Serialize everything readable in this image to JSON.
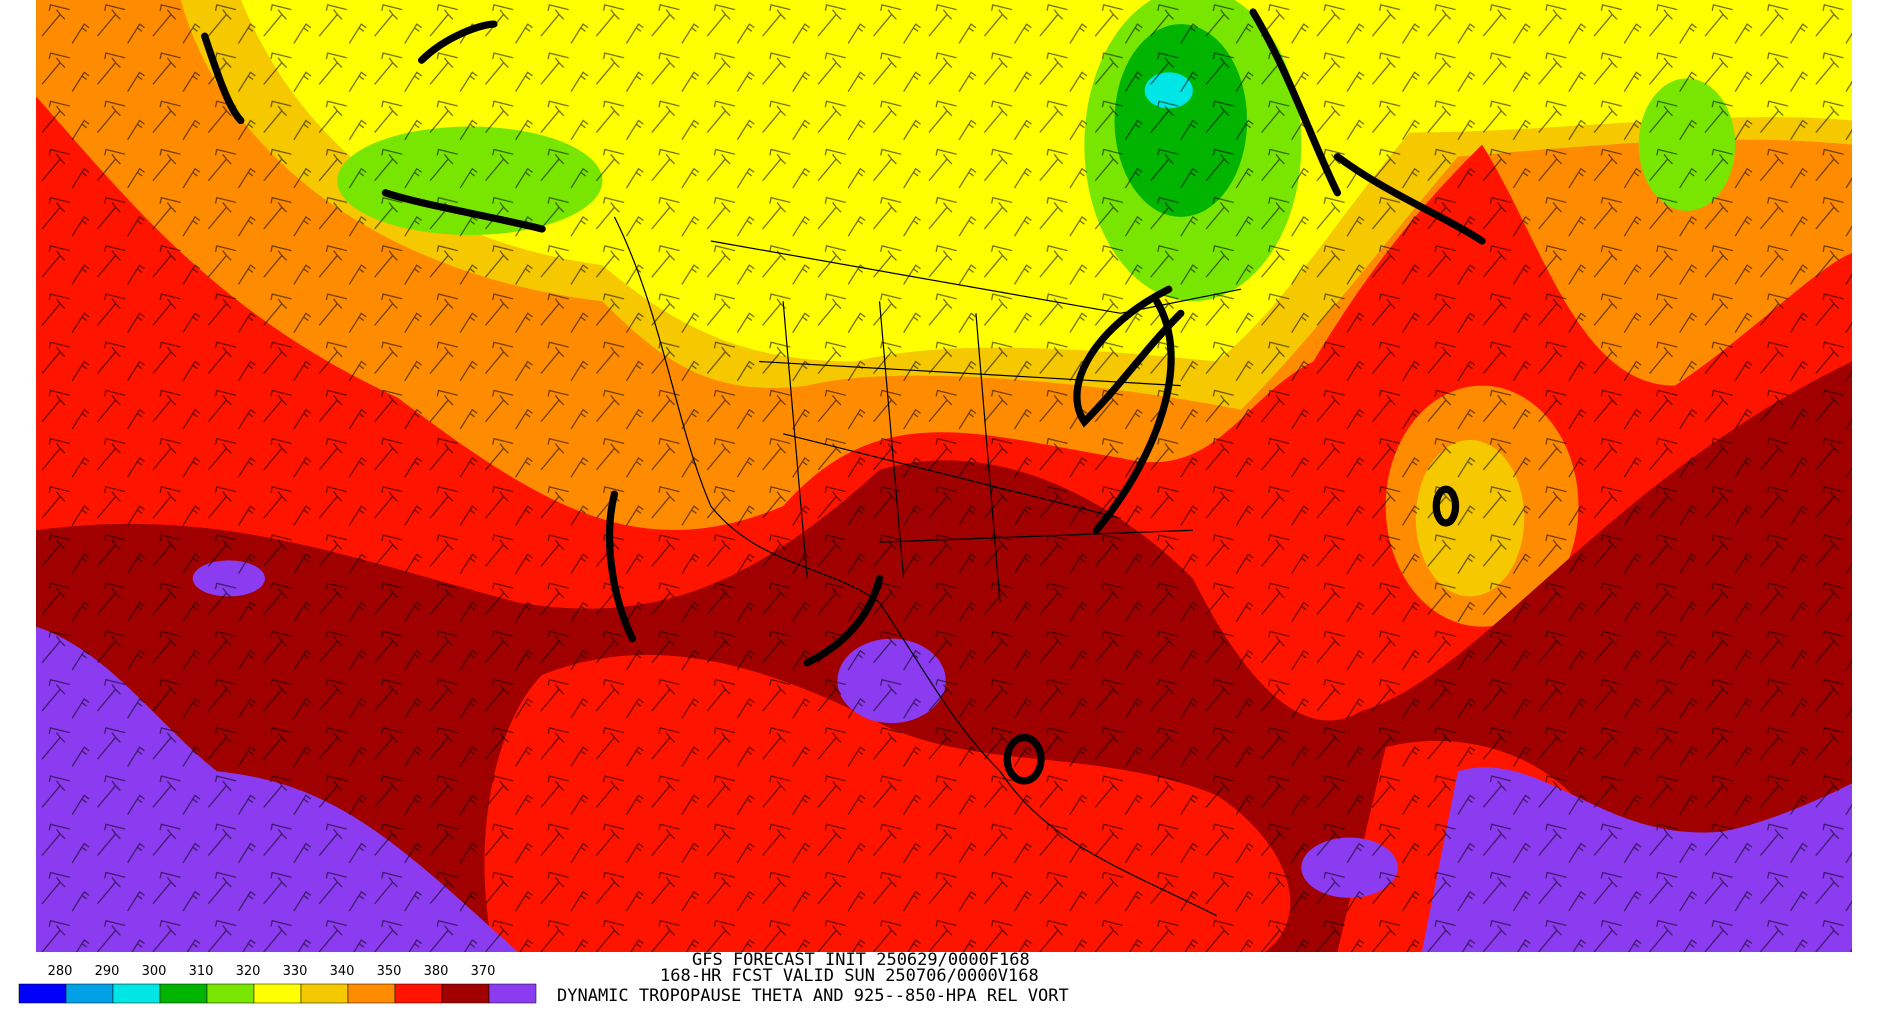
{
  "legend": {
    "labels": [
      "280",
      "290",
      "300",
      "310",
      "320",
      "330",
      "340",
      "350",
      "380",
      "370"
    ],
    "colors": [
      "#0000ff",
      "#00a0e6",
      "#00e6e6",
      "#00b400",
      "#78e600",
      "#ffff00",
      "#f5c800",
      "#ff8c00",
      "#ff1400",
      "#a00000",
      "#8c3cf0"
    ]
  },
  "title": {
    "lines": [
      "GFS FORECAST INIT 250629/0000F168",
      "168-HR FCST VALID SUN 250706/0000V168",
      "DYNAMIC TROPOPAUSE THETA AND 925--850-HPA REL VORT"
    ]
  }
}
